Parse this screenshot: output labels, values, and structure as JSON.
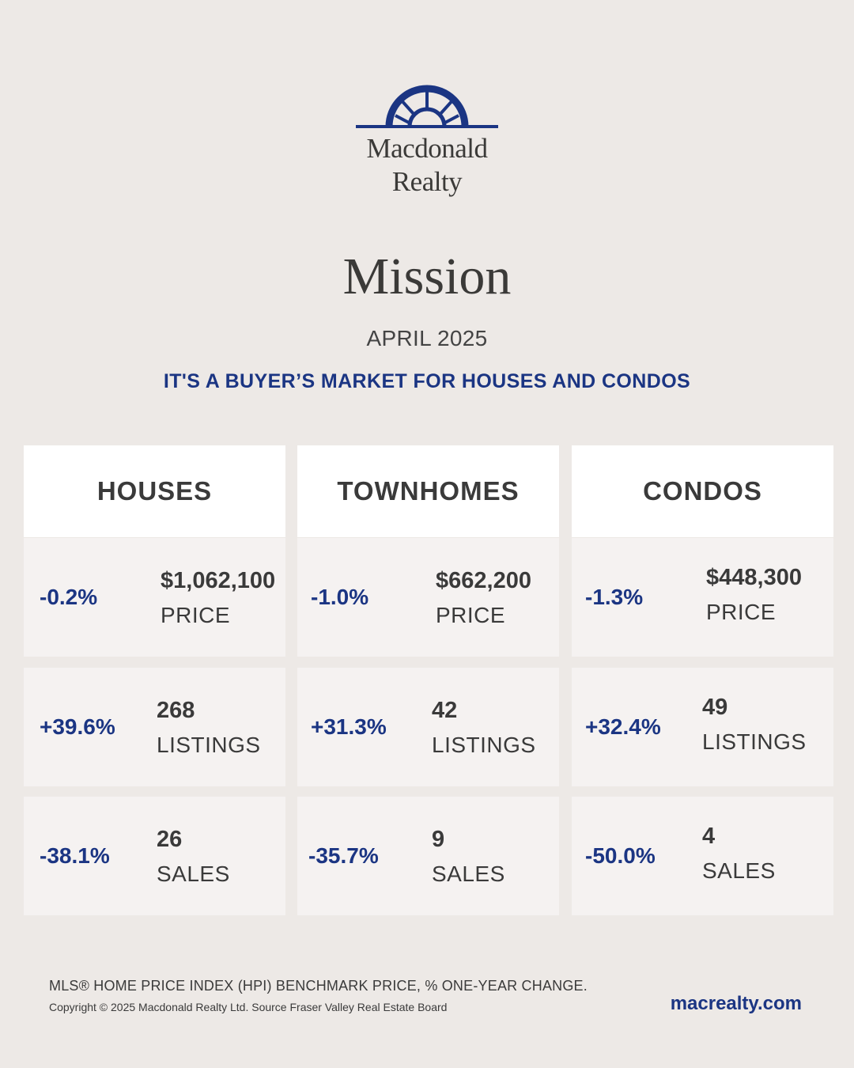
{
  "brand": {
    "name_line1": "Macdonald",
    "name_line2": "Realty",
    "color": "#1b3583"
  },
  "city": "Mission",
  "period": "APRIL 2025",
  "headline": "IT'S A BUYER’S MARKET FOR HOUSES AND CONDOS",
  "columns": [
    {
      "title": "HOUSES",
      "rows": [
        {
          "change": "-0.2%",
          "value": "$1,062,100",
          "label": "PRICE"
        },
        {
          "change": "+39.6%",
          "value": "268",
          "label": "LISTINGS"
        },
        {
          "change": "-38.1%",
          "value": "26",
          "label": "SALES"
        }
      ]
    },
    {
      "title": "TOWNHOMES",
      "rows": [
        {
          "change": "-1.0%",
          "value": "$662,200",
          "label": "PRICE"
        },
        {
          "change": "+31.3%",
          "value": "42",
          "label": "LISTINGS"
        },
        {
          "change": "-35.7%",
          "value": "9",
          "label": "SALES"
        }
      ]
    },
    {
      "title": "CONDOS",
      "rows": [
        {
          "change": "-1.3%",
          "value": "$448,300",
          "label": "PRICE"
        },
        {
          "change": "+32.4%",
          "value": "49",
          "label": "LISTINGS"
        },
        {
          "change": "-50.0%",
          "value": "4",
          "label": "SALES"
        }
      ]
    }
  ],
  "footer": {
    "note": "MLS® HOME PRICE INDEX (HPI) BENCHMARK PRICE, % ONE-YEAR CHANGE.",
    "copyright": "Copyright © 2025 Macdonald Realty Ltd. Source Fraser Valley Real Estate Board",
    "website": "macrealty.com"
  }
}
